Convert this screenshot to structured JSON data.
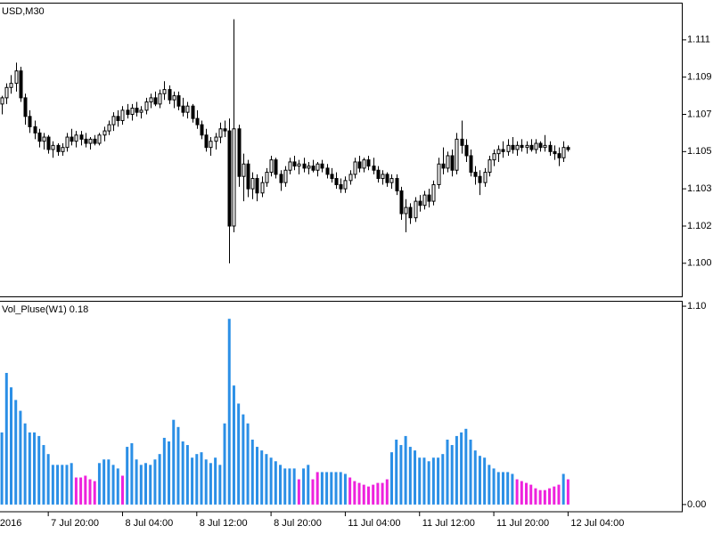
{
  "chart_data": [
    {
      "type": "candlestick",
      "title": "USD,M30",
      "up_color": "#ffffff",
      "down_color": "#000000",
      "outline_color": "#000000",
      "xlim": [
        -0.4,
        146.7
      ],
      "ylim": [
        1.0987,
        1.1129
      ],
      "yticks": [
        {
          "value": 1.1111,
          "label": "1.111"
        },
        {
          "value": 1.1093,
          "label": "1.109"
        },
        {
          "value": 1.1075,
          "label": "1.107"
        },
        {
          "value": 1.1057,
          "label": "1.105"
        },
        {
          "value": 1.1039,
          "label": "1.103"
        },
        {
          "value": 1.1021,
          "label": "1.102"
        },
        {
          "value": 1.1003,
          "label": "1.100"
        }
      ],
      "ohlc": [
        [
          1.108,
          1.1084,
          1.1075,
          1.1083
        ],
        [
          1.1083,
          1.109,
          1.108,
          1.1088
        ],
        [
          1.1088,
          1.1094,
          1.1085,
          1.109
        ],
        [
          1.109,
          1.11,
          1.1086,
          1.1096
        ],
        [
          1.1096,
          1.1098,
          1.1081,
          1.1083
        ],
        [
          1.1083,
          1.1085,
          1.107,
          1.1074
        ],
        [
          1.1074,
          1.1077,
          1.1066,
          1.1069
        ],
        [
          1.1069,
          1.1072,
          1.1063,
          1.1066
        ],
        [
          1.1066,
          1.1068,
          1.1059,
          1.1062
        ],
        [
          1.1062,
          1.1066,
          1.1058,
          1.1064
        ],
        [
          1.1064,
          1.1065,
          1.1056,
          1.1058
        ],
        [
          1.1058,
          1.1062,
          1.1054,
          1.106
        ],
        [
          1.106,
          1.1061,
          1.1055,
          1.1057
        ],
        [
          1.1057,
          1.1061,
          1.1055,
          1.1059
        ],
        [
          1.1059,
          1.1066,
          1.1057,
          1.1064
        ],
        [
          1.1064,
          1.1068,
          1.106,
          1.1062
        ],
        [
          1.1062,
          1.1067,
          1.1059,
          1.1065
        ],
        [
          1.1065,
          1.1067,
          1.106,
          1.1063
        ],
        [
          1.1063,
          1.1066,
          1.1059,
          1.1061
        ],
        [
          1.1061,
          1.1064,
          1.1058,
          1.1063
        ],
        [
          1.1063,
          1.1065,
          1.106,
          1.1061
        ],
        [
          1.1061,
          1.1066,
          1.106,
          1.1065
        ],
        [
          1.1065,
          1.1069,
          1.1062,
          1.1067
        ],
        [
          1.1067,
          1.1072,
          1.1065,
          1.107
        ],
        [
          1.107,
          1.1076,
          1.1067,
          1.1074
        ],
        [
          1.1074,
          1.1077,
          1.1069,
          1.1072
        ],
        [
          1.1072,
          1.1079,
          1.107,
          1.1077
        ],
        [
          1.1077,
          1.108,
          1.1073,
          1.1075
        ],
        [
          1.1075,
          1.108,
          1.1072,
          1.1078
        ],
        [
          1.1078,
          1.1081,
          1.1074,
          1.1076
        ],
        [
          1.1076,
          1.1079,
          1.1073,
          1.1077
        ],
        [
          1.1077,
          1.1083,
          1.1075,
          1.1081
        ],
        [
          1.1081,
          1.1085,
          1.1078,
          1.1083
        ],
        [
          1.1083,
          1.1086,
          1.1079,
          1.108
        ],
        [
          1.108,
          1.1087,
          1.1078,
          1.1085
        ],
        [
          1.1085,
          1.1091,
          1.1082,
          1.1087
        ],
        [
          1.1087,
          1.1089,
          1.108,
          1.1082
        ],
        [
          1.1082,
          1.1086,
          1.1078,
          1.1084
        ],
        [
          1.1084,
          1.1086,
          1.1077,
          1.1079
        ],
        [
          1.1079,
          1.1083,
          1.1074,
          1.1076
        ],
        [
          1.1076,
          1.1081,
          1.1073,
          1.1079
        ],
        [
          1.1079,
          1.108,
          1.1071,
          1.1073
        ],
        [
          1.1073,
          1.1077,
          1.1068,
          1.107
        ],
        [
          1.107,
          1.1072,
          1.1063,
          1.1065
        ],
        [
          1.1065,
          1.1068,
          1.1057,
          1.1059
        ],
        [
          1.1059,
          1.1064,
          1.1055,
          1.1062
        ],
        [
          1.1062,
          1.1066,
          1.1058,
          1.1064
        ],
        [
          1.1064,
          1.1071,
          1.1061,
          1.1068
        ],
        [
          1.1068,
          1.1072,
          1.1064,
          1.1067
        ],
        [
          1.1067,
          1.1073,
          1.1003,
          1.1021
        ],
        [
          1.1021,
          1.1121,
          1.1018,
          1.1068
        ],
        [
          1.1068,
          1.107,
          1.104,
          1.1045
        ],
        [
          1.1045,
          1.1056,
          1.1033,
          1.1051
        ],
        [
          1.1051,
          1.1053,
          1.1035,
          1.1039
        ],
        [
          1.1039,
          1.1047,
          1.1034,
          1.1044
        ],
        [
          1.1044,
          1.1046,
          1.1033,
          1.1037
        ],
        [
          1.1037,
          1.1045,
          1.1035,
          1.1042
        ],
        [
          1.1042,
          1.1049,
          1.104,
          1.1047
        ],
        [
          1.1047,
          1.1055,
          1.1045,
          1.1053
        ],
        [
          1.1053,
          1.1054,
          1.1044,
          1.1046
        ],
        [
          1.1046,
          1.1048,
          1.1038,
          1.1042
        ],
        [
          1.1042,
          1.105,
          1.104,
          1.1048
        ],
        [
          1.1048,
          1.1054,
          1.1046,
          1.1052
        ],
        [
          1.1052,
          1.1055,
          1.1048,
          1.105
        ],
        [
          1.105,
          1.1053,
          1.1046,
          1.1051
        ],
        [
          1.1051,
          1.1054,
          1.1047,
          1.1049
        ],
        [
          1.1049,
          1.1052,
          1.1046,
          1.105
        ],
        [
          1.105,
          1.1053,
          1.1047,
          1.1048
        ],
        [
          1.1048,
          1.1052,
          1.1045,
          1.1051
        ],
        [
          1.1051,
          1.1053,
          1.1047,
          1.1049
        ],
        [
          1.1049,
          1.1051,
          1.1044,
          1.1046
        ],
        [
          1.1046,
          1.1049,
          1.1042,
          1.1044
        ],
        [
          1.1044,
          1.1047,
          1.1039,
          1.1041
        ],
        [
          1.1041,
          1.1044,
          1.1037,
          1.1039
        ],
        [
          1.1039,
          1.1045,
          1.1037,
          1.1043
        ],
        [
          1.1043,
          1.1048,
          1.1041,
          1.1046
        ],
        [
          1.1046,
          1.1054,
          1.1044,
          1.1052
        ],
        [
          1.1052,
          1.1055,
          1.1047,
          1.1049
        ],
        [
          1.1049,
          1.1054,
          1.1047,
          1.1053
        ],
        [
          1.1053,
          1.1055,
          1.1048,
          1.105
        ],
        [
          1.105,
          1.1054,
          1.1046,
          1.1048
        ],
        [
          1.1048,
          1.105,
          1.1042,
          1.1044
        ],
        [
          1.1044,
          1.1048,
          1.1041,
          1.1046
        ],
        [
          1.1046,
          1.1047,
          1.104,
          1.1042
        ],
        [
          1.1042,
          1.1046,
          1.1039,
          1.1044
        ],
        [
          1.1044,
          1.1046,
          1.1036,
          1.1038
        ],
        [
          1.1038,
          1.104,
          1.1024,
          1.1027
        ],
        [
          1.1027,
          1.1034,
          1.1018,
          1.103
        ],
        [
          1.103,
          1.1032,
          1.1022,
          1.1025
        ],
        [
          1.1025,
          1.1035,
          1.1023,
          1.1033
        ],
        [
          1.1033,
          1.1036,
          1.1028,
          1.1031
        ],
        [
          1.1031,
          1.1038,
          1.1029,
          1.1036
        ],
        [
          1.1036,
          1.1039,
          1.103,
          1.1033
        ],
        [
          1.1033,
          1.1043,
          1.1031,
          1.1041
        ],
        [
          1.1041,
          1.1054,
          1.1039,
          1.1051
        ],
        [
          1.1051,
          1.1059,
          1.1046,
          1.1049
        ],
        [
          1.1049,
          1.1057,
          1.1047,
          1.1055
        ],
        [
          1.1055,
          1.1058,
          1.1045,
          1.1048
        ],
        [
          1.1048,
          1.1066,
          1.1046,
          1.1063
        ],
        [
          1.1063,
          1.1072,
          1.1056,
          1.106
        ],
        [
          1.106,
          1.1063,
          1.1052,
          1.1055
        ],
        [
          1.1055,
          1.1058,
          1.1045,
          1.1047
        ],
        [
          1.1047,
          1.105,
          1.1041,
          1.1045
        ],
        [
          1.1045,
          1.1048,
          1.1036,
          1.1042
        ],
        [
          1.1042,
          1.1049,
          1.104,
          1.1047
        ],
        [
          1.1047,
          1.1055,
          1.1045,
          1.1053
        ],
        [
          1.1053,
          1.1058,
          1.105,
          1.1056
        ],
        [
          1.1056,
          1.106,
          1.1052,
          1.1058
        ],
        [
          1.1058,
          1.1062,
          1.1054,
          1.1057
        ],
        [
          1.1057,
          1.1063,
          1.1055,
          1.106
        ],
        [
          1.106,
          1.1064,
          1.1056,
          1.1058
        ],
        [
          1.1058,
          1.1062,
          1.1055,
          1.106
        ],
        [
          1.106,
          1.1063,
          1.1057,
          1.1059
        ],
        [
          1.1059,
          1.1062,
          1.1056,
          1.106
        ],
        [
          1.106,
          1.1063,
          1.1057,
          1.1058
        ],
        [
          1.1058,
          1.1063,
          1.1056,
          1.1061
        ],
        [
          1.1061,
          1.1062,
          1.1057,
          1.1059
        ],
        [
          1.1059,
          1.1065,
          1.1057,
          1.106
        ],
        [
          1.106,
          1.1062,
          1.1055,
          1.1057
        ],
        [
          1.1057,
          1.106,
          1.1053,
          1.1056
        ],
        [
          1.1056,
          1.1059,
          1.105,
          1.1054
        ],
        [
          1.1054,
          1.1062,
          1.1052,
          1.1059
        ],
        [
          1.1059,
          1.106,
          1.1057,
          1.1058
        ]
      ]
    },
    {
      "type": "bar",
      "title": "Vol_Pluse(W1) 0.18",
      "xlim": [
        -0.4,
        146.7
      ],
      "ylim": [
        -0.04,
        1.12
      ],
      "yticks": [
        {
          "value": 1.1,
          "label": "1.10"
        },
        {
          "value": 0,
          "label": "0.00"
        }
      ],
      "xticks": [
        {
          "value": -1,
          "label": "2016"
        },
        {
          "value": 10,
          "label": "7 Jul 20:00"
        },
        {
          "value": 26,
          "label": "8 Jul 04:00"
        },
        {
          "value": 42,
          "label": "8 Jul 12:00"
        },
        {
          "value": 58,
          "label": "8 Jul 20:00"
        },
        {
          "value": 74,
          "label": "11 Jul 04:00"
        },
        {
          "value": 90,
          "label": "11 Jul 12:00"
        },
        {
          "value": 106,
          "label": "11 Jul 20:00"
        },
        {
          "value": 122,
          "label": "12 Jul 04:00"
        }
      ],
      "values": [
        0.4,
        0.73,
        0.65,
        0.58,
        0.52,
        0.45,
        0.4,
        0.4,
        0.38,
        0.33,
        0.28,
        0.22,
        0.22,
        0.22,
        0.22,
        0.23,
        0.15,
        0.15,
        0.16,
        0.14,
        0.13,
        0.23,
        0.25,
        0.25,
        0.22,
        0.2,
        0.16,
        0.32,
        0.34,
        0.25,
        0.22,
        0.23,
        0.22,
        0.25,
        0.28,
        0.37,
        0.35,
        0.47,
        0.43,
        0.35,
        0.33,
        0.26,
        0.28,
        0.29,
        0.25,
        0.23,
        0.26,
        0.22,
        0.45,
        1.03,
        0.66,
        0.56,
        0.5,
        0.45,
        0.36,
        0.32,
        0.3,
        0.28,
        0.26,
        0.24,
        0.22,
        0.2,
        0.2,
        0.2,
        0.14,
        0.2,
        0.22,
        0.14,
        0.18,
        0.18,
        0.18,
        0.18,
        0.18,
        0.18,
        0.17,
        0.15,
        0.13,
        0.12,
        0.11,
        0.1,
        0.11,
        0.12,
        0.12,
        0.14,
        0.29,
        0.36,
        0.33,
        0.38,
        0.32,
        0.3,
        0.26,
        0.26,
        0.24,
        0.26,
        0.26,
        0.28,
        0.36,
        0.33,
        0.38,
        0.4,
        0.42,
        0.36,
        0.3,
        0.27,
        0.26,
        0.22,
        0.2,
        0.18,
        0.18,
        0.18,
        0.17,
        0.14,
        0.13,
        0.12,
        0.11,
        0.09,
        0.08,
        0.08,
        0.09,
        0.1,
        0.11,
        0.17,
        0.14
      ],
      "colors": [
        "#2b8fe6",
        "#2b8fe6",
        "#2b8fe6",
        "#2b8fe6",
        "#2b8fe6",
        "#2b8fe6",
        "#2b8fe6",
        "#2b8fe6",
        "#2b8fe6",
        "#2b8fe6",
        "#2b8fe6",
        "#2b8fe6",
        "#2b8fe6",
        "#2b8fe6",
        "#2b8fe6",
        "#2b8fe6",
        "#ee22dd",
        "#ee22dd",
        "#ee22dd",
        "#ee22dd",
        "#ee22dd",
        "#2b8fe6",
        "#2b8fe6",
        "#2b8fe6",
        "#2b8fe6",
        "#2b8fe6",
        "#ee22dd",
        "#2b8fe6",
        "#2b8fe6",
        "#2b8fe6",
        "#2b8fe6",
        "#2b8fe6",
        "#2b8fe6",
        "#2b8fe6",
        "#2b8fe6",
        "#2b8fe6",
        "#2b8fe6",
        "#2b8fe6",
        "#2b8fe6",
        "#2b8fe6",
        "#2b8fe6",
        "#2b8fe6",
        "#2b8fe6",
        "#2b8fe6",
        "#2b8fe6",
        "#2b8fe6",
        "#2b8fe6",
        "#2b8fe6",
        "#2b8fe6",
        "#2b8fe6",
        "#2b8fe6",
        "#2b8fe6",
        "#2b8fe6",
        "#2b8fe6",
        "#2b8fe6",
        "#2b8fe6",
        "#2b8fe6",
        "#2b8fe6",
        "#2b8fe6",
        "#2b8fe6",
        "#2b8fe6",
        "#2b8fe6",
        "#2b8fe6",
        "#2b8fe6",
        "#ee22dd",
        "#2b8fe6",
        "#2b8fe6",
        "#ee22dd",
        "#ee22dd",
        "#2b8fe6",
        "#2b8fe6",
        "#2b8fe6",
        "#2b8fe6",
        "#2b8fe6",
        "#2b8fe6",
        "#ee22dd",
        "#ee22dd",
        "#ee22dd",
        "#ee22dd",
        "#ee22dd",
        "#ee22dd",
        "#ee22dd",
        "#ee22dd",
        "#ee22dd",
        "#2b8fe6",
        "#2b8fe6",
        "#2b8fe6",
        "#2b8fe6",
        "#2b8fe6",
        "#2b8fe6",
        "#2b8fe6",
        "#2b8fe6",
        "#2b8fe6",
        "#2b8fe6",
        "#2b8fe6",
        "#2b8fe6",
        "#2b8fe6",
        "#2b8fe6",
        "#2b8fe6",
        "#2b8fe6",
        "#2b8fe6",
        "#2b8fe6",
        "#2b8fe6",
        "#2b8fe6",
        "#2b8fe6",
        "#2b8fe6",
        "#2b8fe6",
        "#2b8fe6",
        "#2b8fe6",
        "#2b8fe6",
        "#2b8fe6",
        "#ee22dd",
        "#ee22dd",
        "#ee22dd",
        "#ee22dd",
        "#ee22dd",
        "#ee22dd",
        "#ee22dd",
        "#ee22dd",
        "#ee22dd",
        "#ee22dd",
        "#2b8fe6",
        "#ee22dd"
      ]
    }
  ]
}
